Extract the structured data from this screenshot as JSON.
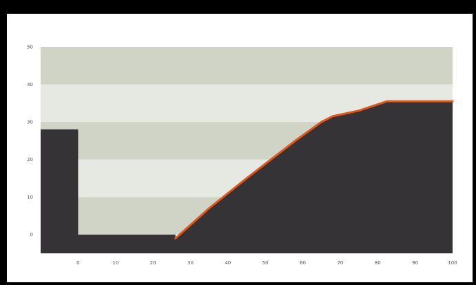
{
  "chart_data": {
    "type": "area",
    "title": "",
    "xlabel": "",
    "ylabel": "",
    "xlim": [
      -10,
      100
    ],
    "ylim": [
      -5,
      50
    ],
    "x_ticks": [
      0,
      10,
      20,
      30,
      40,
      50,
      60,
      70,
      80,
      90,
      100
    ],
    "y_ticks": [
      0,
      10,
      20,
      30,
      40,
      50
    ],
    "background_bands": [
      {
        "from": 0,
        "to": 10,
        "color": "#d0d4c6"
      },
      {
        "from": 10,
        "to": 20,
        "color": "#e6e9e1"
      },
      {
        "from": 20,
        "to": 30,
        "color": "#d0d4c6"
      },
      {
        "from": 30,
        "to": 40,
        "color": "#e6e9e1"
      },
      {
        "from": 40,
        "to": 50,
        "color": "#d0d4c6"
      }
    ],
    "profile": {
      "fill_color": "#353335",
      "points": [
        {
          "x": -10,
          "y": 28
        },
        {
          "x": 0,
          "y": 28
        },
        {
          "x": 0,
          "y": 0
        },
        {
          "x": 26,
          "y": 0
        },
        {
          "x": 26,
          "y": -1
        },
        {
          "x": 35,
          "y": 7
        },
        {
          "x": 45,
          "y": 15
        },
        {
          "x": 58,
          "y": 25
        },
        {
          "x": 65,
          "y": 30
        },
        {
          "x": 68,
          "y": 31.5
        },
        {
          "x": 75,
          "y": 33
        },
        {
          "x": 82.5,
          "y": 35.5
        },
        {
          "x": 100,
          "y": 35.5
        }
      ]
    },
    "surface_line": {
      "color": "#e0561c",
      "points": [
        {
          "x": 26,
          "y": -1
        },
        {
          "x": 35,
          "y": 7
        },
        {
          "x": 45,
          "y": 15
        },
        {
          "x": 58,
          "y": 25
        },
        {
          "x": 65,
          "y": 30
        },
        {
          "x": 68,
          "y": 31.5
        },
        {
          "x": 75,
          "y": 33
        },
        {
          "x": 82.5,
          "y": 35.5
        },
        {
          "x": 100,
          "y": 35.5
        }
      ]
    }
  }
}
